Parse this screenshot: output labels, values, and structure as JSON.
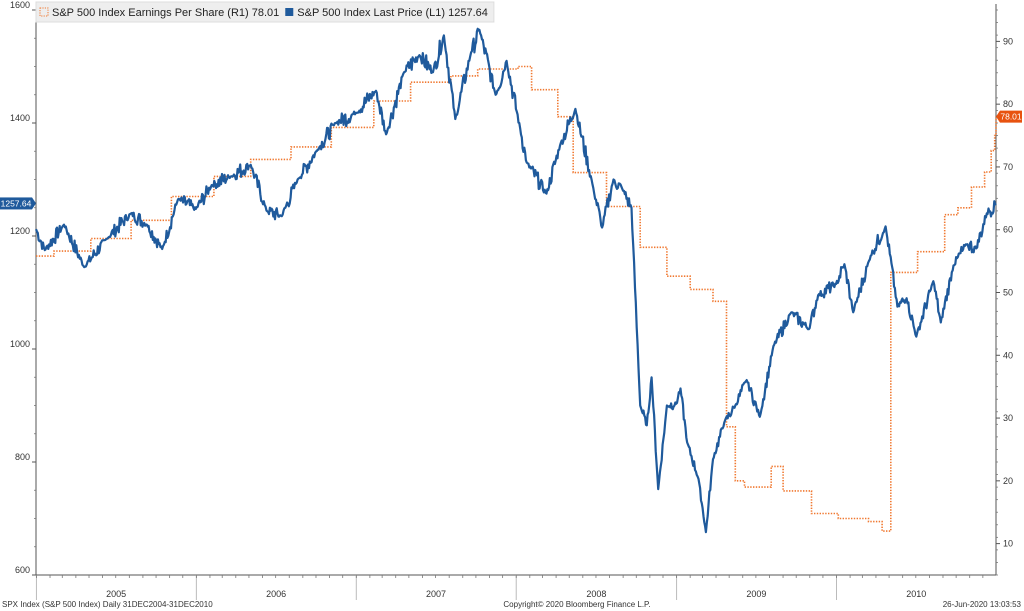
{
  "chart_data": {
    "type": "line",
    "x_range": [
      "2004-12-31",
      "2010-12-31"
    ],
    "year_labels": [
      "2005",
      "2006",
      "2007",
      "2008",
      "2009",
      "2010"
    ],
    "left_axis": {
      "ylim": [
        600,
        1600
      ],
      "ticks": [
        "600",
        "800",
        "1000",
        "1200",
        "1400",
        "1600"
      ]
    },
    "right_axis": {
      "ylim": [
        5,
        95
      ],
      "ticks": [
        "10",
        "20",
        "30",
        "40",
        "50",
        "60",
        "70",
        "80",
        "90"
      ]
    },
    "grid": false,
    "legend_position": "top-left",
    "series": [
      {
        "name": "S&P 500 Index Earnings Per Share (R1) 78.01",
        "axis": "right",
        "style": "dotted-step",
        "color": "#f07830",
        "last_value": "78.01",
        "points": [
          [
            "2004-12-31",
            55.8
          ],
          [
            "2005-02-10",
            56.6
          ],
          [
            "2005-05-05",
            58.6
          ],
          [
            "2005-08-05",
            61.5
          ],
          [
            "2005-11-05",
            65.3
          ],
          [
            "2006-02-10",
            68.5
          ],
          [
            "2006-05-05",
            71.2
          ],
          [
            "2006-08-05",
            73.2
          ],
          [
            "2006-11-05",
            76.3
          ],
          [
            "2007-02-10",
            80.5
          ],
          [
            "2007-05-05",
            83.5
          ],
          [
            "2007-08-05",
            84.5
          ],
          [
            "2007-10-05",
            85.6
          ],
          [
            "2008-01-05",
            86.0
          ],
          [
            "2008-02-05",
            82.3
          ],
          [
            "2008-04-05",
            78.0
          ],
          [
            "2008-05-10",
            69.1
          ],
          [
            "2008-07-25",
            63.7
          ],
          [
            "2008-10-10",
            57.2
          ],
          [
            "2008-12-10",
            52.6
          ],
          [
            "2009-02-01",
            50.5
          ],
          [
            "2009-03-25",
            48.6
          ],
          [
            "2009-04-25",
            28.6
          ],
          [
            "2009-05-15",
            20.0
          ],
          [
            "2009-06-05",
            19.0
          ],
          [
            "2009-08-05",
            22.3
          ],
          [
            "2009-09-01",
            18.4
          ],
          [
            "2009-11-05",
            14.8
          ],
          [
            "2010-01-05",
            14.0
          ],
          [
            "2010-03-15",
            13.5
          ],
          [
            "2010-04-15",
            12.0
          ],
          [
            "2010-05-05",
            53.2
          ],
          [
            "2010-07-05",
            56.5
          ],
          [
            "2010-09-05",
            62.4
          ],
          [
            "2010-10-05",
            63.5
          ],
          [
            "2010-11-05",
            66.8
          ],
          [
            "2010-12-05",
            69.2
          ],
          [
            "2010-12-20",
            72.6
          ],
          [
            "2010-12-28",
            75.0
          ],
          [
            "2010-12-31",
            78.01
          ]
        ]
      },
      {
        "name": "S&P 500 Index Last Price (L1) 1257.64",
        "axis": "left",
        "style": "solid",
        "color": "#1f5a9c",
        "last_value": "1257.64",
        "points": [
          [
            "2004-12-31",
            1212
          ],
          [
            "2005-01-20",
            1175
          ],
          [
            "2005-03-05",
            1220
          ],
          [
            "2005-04-20",
            1145
          ],
          [
            "2005-06-10",
            1195
          ],
          [
            "2005-08-05",
            1240
          ],
          [
            "2005-09-10",
            1220
          ],
          [
            "2005-10-15",
            1177
          ],
          [
            "2005-11-20",
            1265
          ],
          [
            "2005-12-31",
            1248
          ],
          [
            "2006-02-05",
            1290
          ],
          [
            "2006-03-20",
            1305
          ],
          [
            "2006-05-05",
            1326
          ],
          [
            "2006-06-10",
            1245
          ],
          [
            "2006-07-15",
            1235
          ],
          [
            "2006-08-20",
            1300
          ],
          [
            "2006-10-05",
            1353
          ],
          [
            "2006-11-15",
            1400
          ],
          [
            "2006-12-31",
            1418
          ],
          [
            "2007-02-15",
            1457
          ],
          [
            "2007-03-10",
            1380
          ],
          [
            "2007-04-20",
            1490
          ],
          [
            "2007-05-25",
            1520
          ],
          [
            "2007-06-25",
            1490
          ],
          [
            "2007-07-20",
            1555
          ],
          [
            "2007-08-15",
            1407
          ],
          [
            "2007-09-20",
            1525
          ],
          [
            "2007-10-09",
            1565
          ],
          [
            "2007-11-15",
            1450
          ],
          [
            "2007-12-10",
            1510
          ],
          [
            "2008-01-10",
            1390
          ],
          [
            "2008-01-25",
            1330
          ],
          [
            "2008-03-10",
            1275
          ],
          [
            "2008-04-10",
            1360
          ],
          [
            "2008-05-15",
            1425
          ],
          [
            "2008-06-25",
            1285
          ],
          [
            "2008-07-15",
            1215
          ],
          [
            "2008-08-10",
            1300
          ],
          [
            "2008-09-01",
            1280
          ],
          [
            "2008-09-20",
            1250
          ],
          [
            "2008-10-10",
            900
          ],
          [
            "2008-10-25",
            865
          ],
          [
            "2008-11-05",
            950
          ],
          [
            "2008-11-20",
            752
          ],
          [
            "2008-12-10",
            900
          ],
          [
            "2008-12-31",
            903
          ],
          [
            "2009-01-10",
            930
          ],
          [
            "2009-01-25",
            835
          ],
          [
            "2009-02-20",
            770
          ],
          [
            "2009-03-09",
            676
          ],
          [
            "2009-03-25",
            805
          ],
          [
            "2009-04-20",
            870
          ],
          [
            "2009-05-15",
            900
          ],
          [
            "2009-06-10",
            945
          ],
          [
            "2009-07-10",
            880
          ],
          [
            "2009-08-10",
            1005
          ],
          [
            "2009-09-20",
            1065
          ],
          [
            "2009-10-30",
            1035
          ],
          [
            "2009-11-20",
            1095
          ],
          [
            "2009-12-31",
            1115
          ],
          [
            "2010-01-19",
            1150
          ],
          [
            "2010-02-08",
            1065
          ],
          [
            "2010-03-20",
            1165
          ],
          [
            "2010-04-23",
            1217
          ],
          [
            "2010-05-20",
            1075
          ],
          [
            "2010-06-10",
            1090
          ],
          [
            "2010-07-02",
            1022
          ],
          [
            "2010-08-10",
            1120
          ],
          [
            "2010-08-27",
            1047
          ],
          [
            "2010-09-25",
            1148
          ],
          [
            "2010-10-25",
            1185
          ],
          [
            "2010-11-16",
            1178
          ],
          [
            "2010-12-10",
            1240
          ],
          [
            "2010-12-31",
            1257.64
          ]
        ]
      }
    ]
  },
  "footer": {
    "left": "SPX Index (S&P 500 Index)  Daily 31DEC2004-31DEC2010",
    "center": "Copyright© 2020 Bloomberg Finance L.P.",
    "right": "26-Jun-2020 13:03:53"
  }
}
